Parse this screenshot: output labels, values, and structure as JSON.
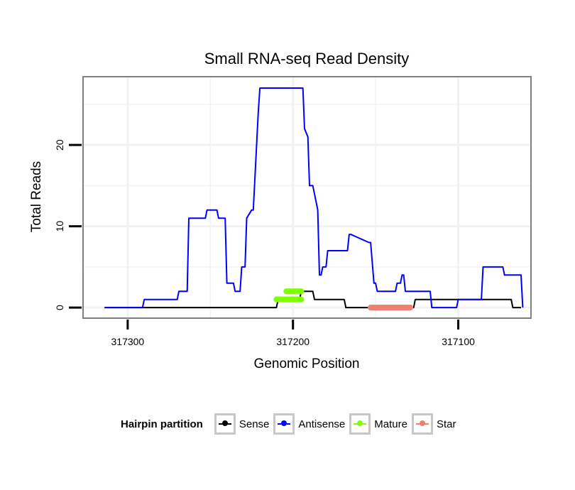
{
  "chart_data": {
    "type": "line",
    "title": "Small RNA-seq Read Density",
    "xlabel": "Genomic Position",
    "ylabel": "Total Reads",
    "x_reversed": true,
    "xlim": [
      317327,
      317056
    ],
    "ylim": [
      -1.3,
      28.4
    ],
    "x_ticks": [
      317300,
      317200,
      317100
    ],
    "x_tick_labels": [
      "317300",
      "317200",
      "317100"
    ],
    "y_ticks": [
      0,
      10,
      20
    ],
    "y_tick_labels": [
      "0",
      "10",
      "20"
    ],
    "grid": true,
    "legend": {
      "title": "Hairpin partition",
      "position": "bottom",
      "entries": [
        {
          "name": "Sense",
          "color": "#000000"
        },
        {
          "name": "Antisense",
          "color": "#0000ff"
        },
        {
          "name": "Mature",
          "color": "#7fff00"
        },
        {
          "name": "Star",
          "color": "#f08070"
        }
      ]
    },
    "series": [
      {
        "name": "Sense",
        "color": "#000000",
        "x": [
          317314,
          317210,
          317209,
          317196,
          317195,
          317188,
          317187,
          317169,
          317168,
          317127,
          317126,
          317114,
          317113,
          317080,
          317079,
          317068,
          317067,
          317062
        ],
        "y": [
          0,
          0,
          1,
          1,
          2,
          2,
          1,
          1,
          0,
          0,
          1,
          1,
          1,
          1,
          1,
          1,
          0,
          0
        ]
      },
      {
        "name": "Antisense",
        "color": "#0000ff",
        "x": [
          317314,
          317291,
          317290,
          317270,
          317269,
          317264,
          317263,
          317253,
          317252,
          317246,
          317245,
          317241,
          317240,
          317236,
          317235,
          317232,
          317231,
          317229,
          317228,
          317225,
          317224,
          317221,
          317220,
          317217,
          317216,
          317214,
          317213,
          317212,
          317210,
          317194,
          317193,
          317191,
          317190,
          317188,
          317187,
          317185,
          317184,
          317183,
          317182,
          317180,
          317179,
          317168,
          317167,
          317166,
          317165,
          317154,
          317153,
          317151,
          317150,
          317149,
          317148,
          317145,
          317144,
          317138,
          317137,
          317135,
          317134,
          317133,
          317132,
          317130,
          317129,
          317117,
          317116,
          317101,
          317100,
          317086,
          317085,
          317073,
          317072,
          317062,
          317061
        ],
        "y": [
          0,
          0,
          1,
          1,
          2,
          2,
          11,
          11,
          12,
          12,
          11,
          11,
          3,
          3,
          2,
          2,
          5,
          5,
          11,
          12,
          12,
          24,
          27,
          27,
          27,
          27,
          27,
          27,
          27,
          27,
          22,
          21,
          15,
          15,
          14,
          12,
          4,
          4,
          5,
          5,
          7,
          7,
          7,
          9,
          9,
          8,
          8,
          3,
          3,
          2,
          2,
          2,
          2,
          2,
          3,
          3,
          4,
          4,
          2,
          2,
          2,
          2,
          0,
          0,
          1,
          1,
          5,
          5,
          4,
          4,
          0
        ]
      }
    ],
    "segments": [
      {
        "name": "Mature",
        "color": "#7fff00",
        "x_start": 317210,
        "x_end": 317195,
        "y": 1
      },
      {
        "name": "Mature",
        "color": "#7fff00",
        "x_start": 317204,
        "x_end": 317195,
        "y": 2
      },
      {
        "name": "Star",
        "color": "#f08070",
        "x_start": 317153,
        "x_end": 317129,
        "y": 0
      }
    ]
  }
}
